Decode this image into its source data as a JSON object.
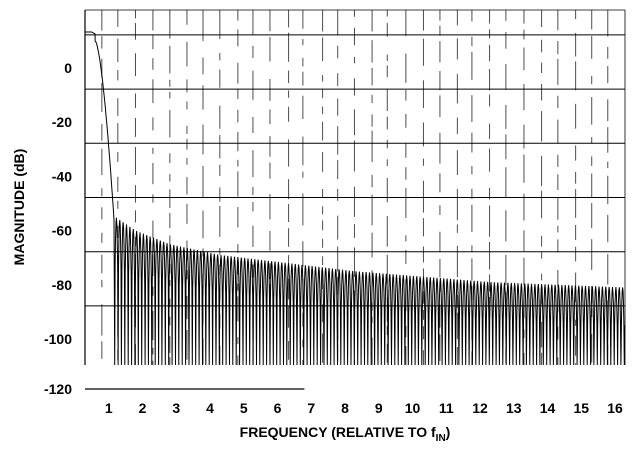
{
  "chart_data": {
    "type": "line",
    "title": "",
    "xlabel_main": "FREQUENCY (RELATIVE TO f",
    "xlabel_sub": "IN",
    "xlabel_close": ")",
    "ylabel": "MAGNITUDE (dB)",
    "xlim": [
      0,
      16
    ],
    "ylim": [
      -120,
      20
    ],
    "x_ticks": [
      "1",
      "2",
      "3",
      "4",
      "5",
      "6",
      "7",
      "8",
      "9",
      "10",
      "11",
      "12",
      "13",
      "14",
      "15",
      "16"
    ],
    "y_ticks": [
      {
        "value": 0,
        "label": "0"
      },
      {
        "value": -20,
        "label": "-20"
      },
      {
        "value": -40,
        "label": "-40"
      },
      {
        "value": -60,
        "label": "-60"
      },
      {
        "value": -80,
        "label": "-80"
      },
      {
        "value": -100,
        "label": "-100"
      },
      {
        "value": -120,
        "label": "-120"
      }
    ],
    "grid": true,
    "series": [
      {
        "color": "#000000",
        "passband_level": 0,
        "passband_edge": 0.3,
        "first_null": 0.88,
        "lobe_spacing": 0.1,
        "envelope": [
          {
            "x": 0.9,
            "y": -68
          },
          {
            "x": 1.5,
            "y": -73
          },
          {
            "x": 2.5,
            "y": -78
          },
          {
            "x": 4,
            "y": -82
          },
          {
            "x": 6,
            "y": -85
          },
          {
            "x": 8,
            "y": -88
          },
          {
            "x": 10,
            "y": -90
          },
          {
            "x": 12,
            "y": -92
          },
          {
            "x": 14,
            "y": -93
          },
          {
            "x": 16,
            "y": -94
          }
        ]
      }
    ]
  }
}
